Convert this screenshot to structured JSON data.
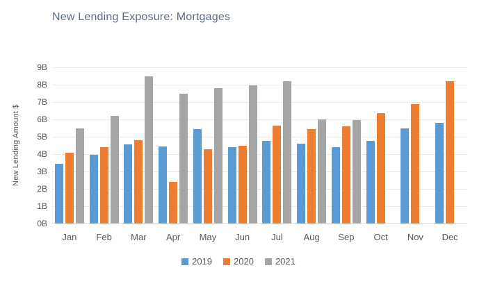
{
  "page": {
    "background": "#ffffff"
  },
  "chart_data": {
    "type": "bar",
    "title": "New Lending Exposure: Mortgages",
    "ylabel": "New Lending Amount $",
    "xlabel": "",
    "categories": [
      "Jan",
      "Feb",
      "Mar",
      "Apr",
      "May",
      "Jun",
      "Jul",
      "Aug",
      "Sep",
      "Oct",
      "Nov",
      "Dec"
    ],
    "series": [
      {
        "name": "2019",
        "color": "#5B9BD5",
        "values": [
          3.45,
          3.95,
          4.55,
          4.45,
          5.45,
          4.4,
          4.75,
          4.6,
          4.4,
          4.75,
          5.5,
          5.8
        ]
      },
      {
        "name": "2020",
        "color": "#ED7D31",
        "values": [
          4.1,
          4.4,
          4.8,
          2.4,
          4.3,
          4.5,
          5.65,
          5.45,
          5.6,
          6.35,
          6.9,
          8.2
        ]
      },
      {
        "name": "2021",
        "color": "#A5A5A5",
        "values": [
          5.5,
          6.2,
          8.5,
          7.5,
          7.8,
          7.95,
          8.2,
          6.0,
          5.95,
          null,
          null,
          null
        ]
      }
    ],
    "ylim": [
      0,
      9
    ],
    "ytick_step": 1,
    "ytick_suffix": "B",
    "grid": true,
    "legend_position": "bottom",
    "colors": {
      "title_text": "#5e6c80",
      "tick_text": "#595959",
      "gridline": "#e8e8e8",
      "axis_line": "#d9d9d9"
    }
  }
}
